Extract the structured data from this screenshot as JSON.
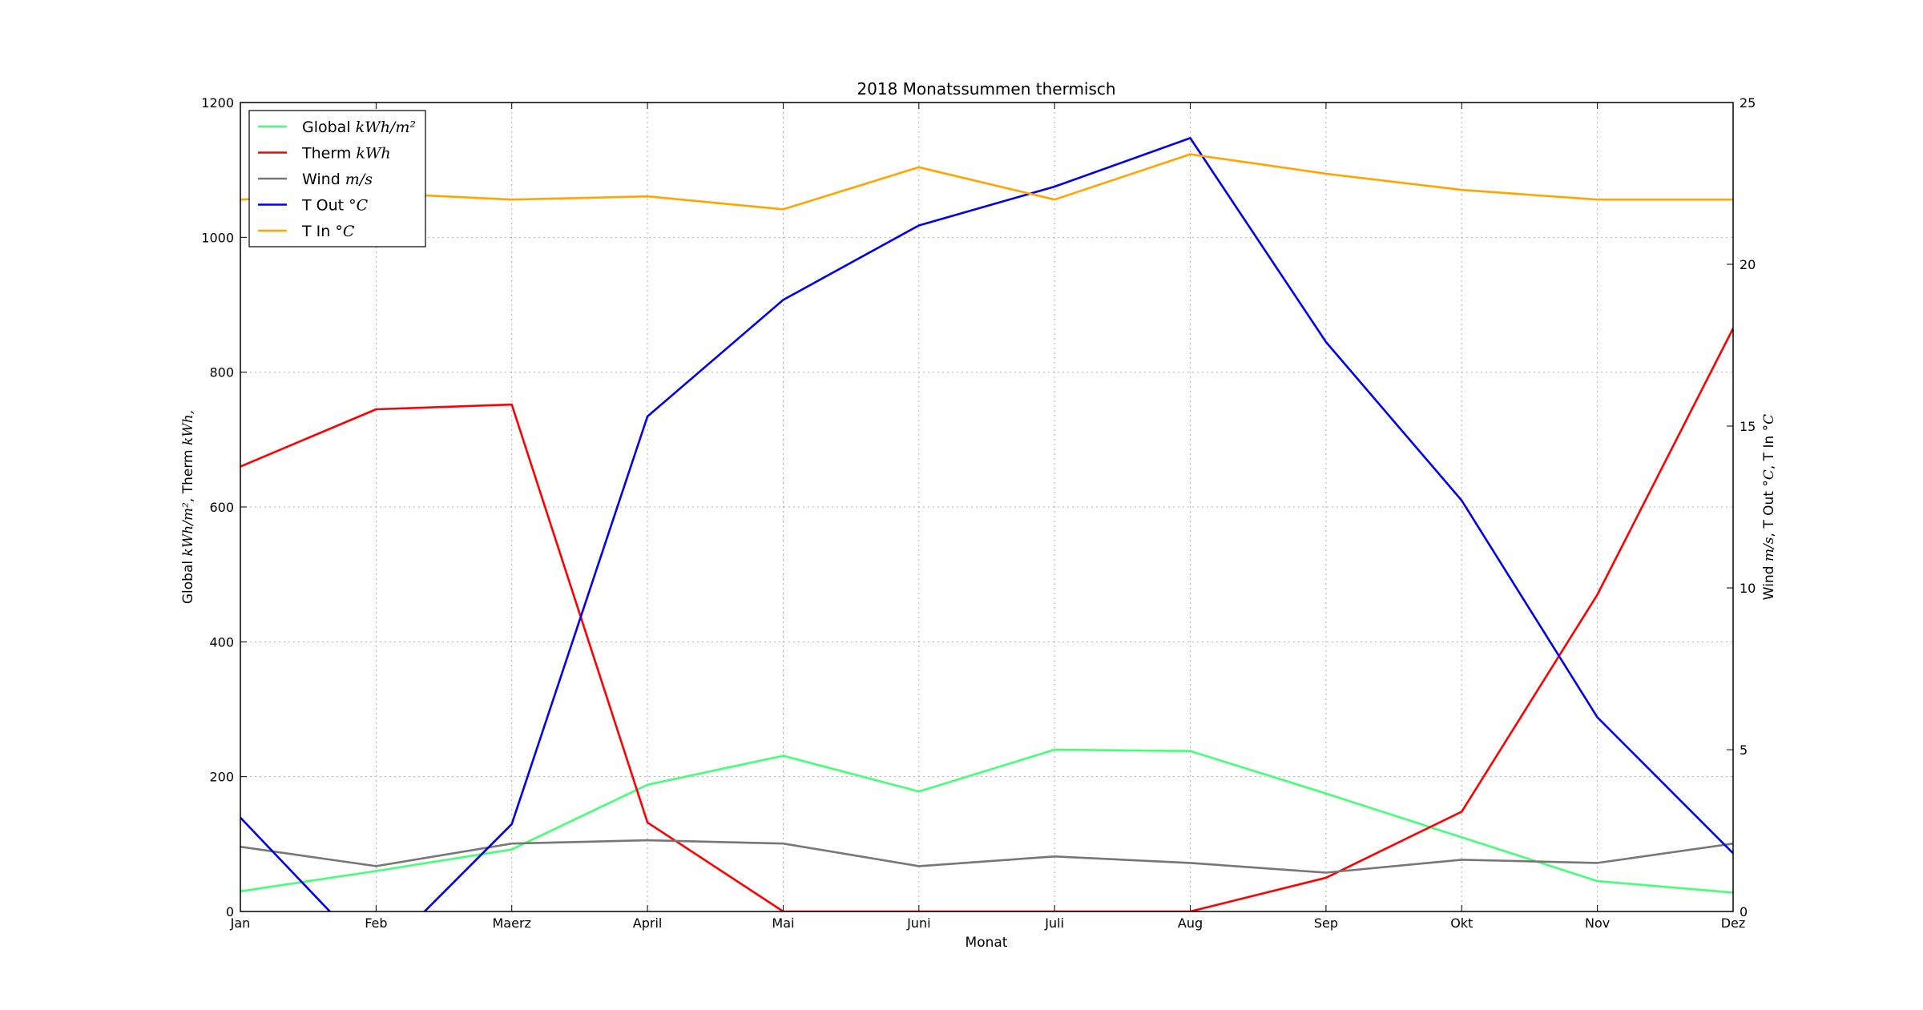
{
  "chart_data": {
    "type": "line",
    "title": "2018 Monatssummen thermisch",
    "xlabel": "Monat",
    "ylabel_left": {
      "prefix": "Global ",
      "unit1": "kWh/m²",
      "mid": ", Therm ",
      "unit2": "kWh,"
    },
    "ylabel_right": {
      "prefix": "Wind ",
      "unit1": "m/s",
      "mid": ", T Out ",
      "unit2": "°C",
      "mid2": ", T In ",
      "unit3": "°C"
    },
    "categories": [
      "Jan",
      "Feb",
      "Maerz",
      "April",
      "Mai",
      "Juni",
      "Juli",
      "Aug",
      "Sep",
      "Okt",
      "Nov",
      "Dez"
    ],
    "ylim_left": [
      0,
      1200
    ],
    "yticks_left": [
      0,
      200,
      400,
      600,
      800,
      1000,
      1200
    ],
    "ylim_right": [
      0,
      25
    ],
    "yticks_right": [
      0,
      5,
      10,
      15,
      20,
      25
    ],
    "grid": true,
    "legend_position": "top-left",
    "series": [
      {
        "name": "Global",
        "unit": "kWh/m²",
        "axis": "left",
        "color": "#44ff77",
        "values": [
          30,
          60,
          92,
          188,
          231,
          178,
          240,
          238,
          175,
          110,
          45,
          28
        ]
      },
      {
        "name": "Therm",
        "unit": "kWh",
        "axis": "left",
        "color": "#ff0000",
        "values": [
          660,
          745,
          752,
          132,
          0,
          0,
          0,
          0,
          50,
          148,
          470,
          865
        ]
      },
      {
        "name": "Wind",
        "unit": "m/s",
        "axis": "right",
        "color": "#777777",
        "values": [
          2.0,
          1.4,
          2.1,
          2.2,
          2.1,
          1.4,
          1.7,
          1.5,
          1.2,
          1.6,
          1.5,
          2.1
        ]
      },
      {
        "name": "T Out",
        "unit": "°C",
        "axis": "right",
        "color": "#0000ee",
        "values": [
          2.9,
          -1.5,
          2.7,
          15.3,
          18.9,
          21.2,
          22.4,
          23.9,
          17.6,
          12.7,
          6.0,
          1.8
        ]
      },
      {
        "name": "T In",
        "unit": "°C",
        "axis": "right",
        "color": "#ffa500",
        "values": [
          22.0,
          22.2,
          22.0,
          22.1,
          21.7,
          23.0,
          22.0,
          23.4,
          22.8,
          22.3,
          22.0,
          22.0
        ]
      }
    ]
  }
}
